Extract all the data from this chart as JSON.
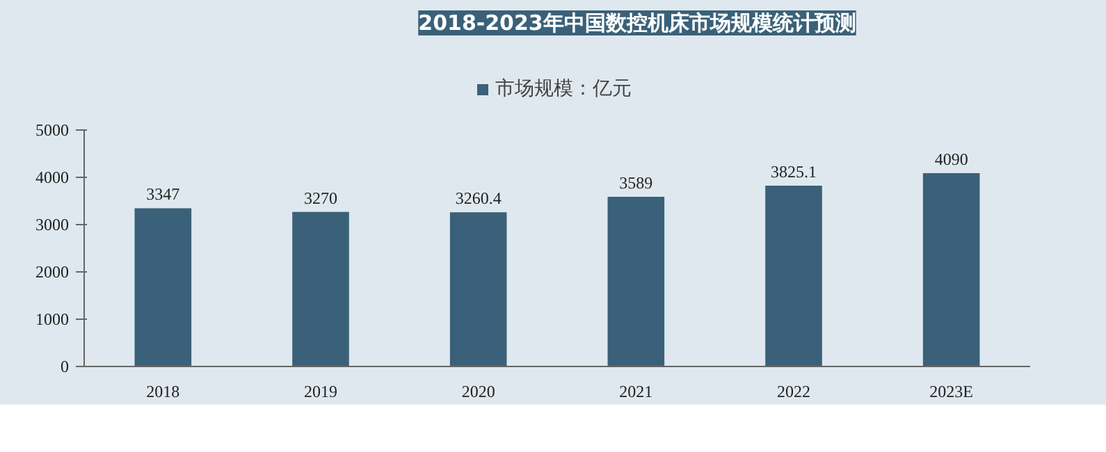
{
  "chart_data": {
    "type": "bar",
    "title": "2018-2023年中国数控机床市场规模统计预测",
    "categories": [
      "2018",
      "2019",
      "2020",
      "2021",
      "2022",
      "2023E"
    ],
    "series": [
      {
        "name": "市场规模：亿元",
        "color": "#3a6179",
        "values": [
          3347,
          3270,
          3260.4,
          3589,
          3825.1,
          4090
        ]
      }
    ],
    "ylim": [
      0,
      5000
    ],
    "yticks": [
      0,
      1000,
      2000,
      3000,
      4000,
      5000
    ],
    "data_labels": true,
    "legend": "top",
    "grid": false
  }
}
